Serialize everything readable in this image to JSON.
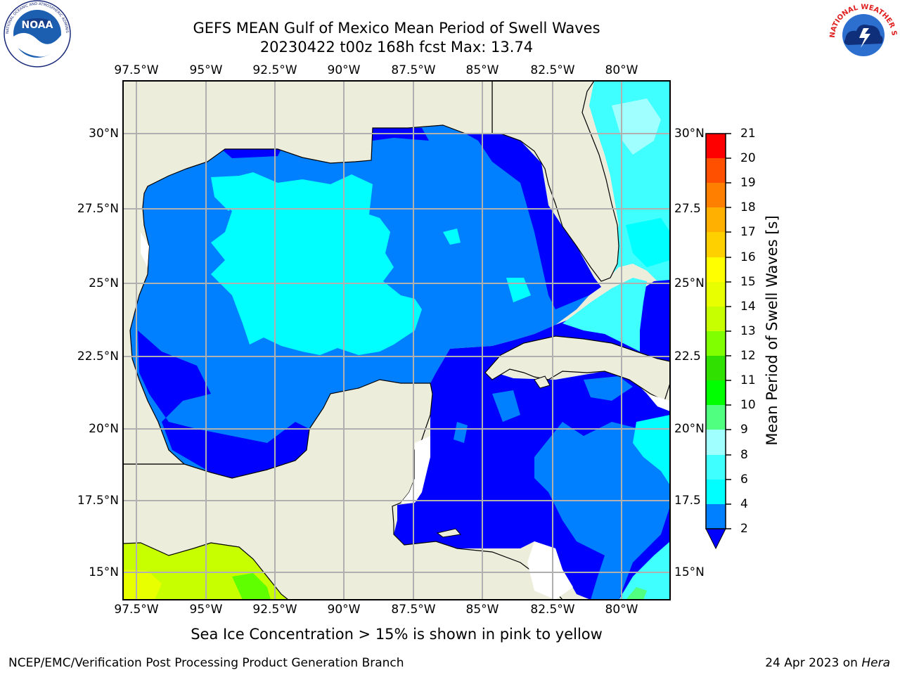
{
  "title_line1": "GEFS MEAN Gulf of Mexico Mean Period of Swell Waves",
  "title_line2": "20230422 t00z 168h fcst   Max: 13.74",
  "logo_left": {
    "name": "noaa-logo",
    "text": "NOAA",
    "ring_text": "NATIONAL OCEANIC AND ATMOSPHERIC ADMINISTRATION · U.S. DEPARTMENT OF COMMERCE"
  },
  "logo_right": {
    "name": "nws-logo",
    "ring_text": "NATIONAL WEATHER SERVICE"
  },
  "map": {
    "lon_labels": [
      "97.5°W",
      "95°W",
      "92.5°W",
      "90°W",
      "87.5°W",
      "85°W",
      "82.5°W",
      "80°W"
    ],
    "lat_labels": [
      "30°N",
      "27.5°N",
      "25°N",
      "22.5°N",
      "20°N",
      "17.5°N",
      "15°N"
    ],
    "lat_labels_right": [
      "30°N",
      "27.5",
      "25°N",
      "22.5",
      "20°N",
      "17.5",
      "15°N"
    ],
    "colors": {
      "land": "#ededdc",
      "coast": "#000000",
      "grid": "#b0b0b0"
    }
  },
  "colorbar": {
    "label": "Mean Period of Swell Waves [s]",
    "ticks": [
      "2",
      "4",
      "6",
      "8",
      "9",
      "10",
      "11",
      "12",
      "13",
      "14",
      "15",
      "16",
      "17",
      "18",
      "19",
      "20",
      "21"
    ],
    "colors": [
      "#0000ff",
      "#0080ff",
      "#00ffff",
      "#40ffff",
      "#a0ffff",
      "#50ff80",
      "#30ff30",
      "#00e000",
      "#60ff00",
      "#c8ff00",
      "#e8ff00",
      "#ffff00",
      "#ffd000",
      "#ffb000",
      "#ff8000",
      "#ff5000",
      "#ff2000",
      "#ff0000"
    ]
  },
  "note": "Sea Ice Concentration > 15% is shown in pink to yellow",
  "credit": "NCEP/EMC/Verification Post Processing Product Generation Branch",
  "date": "24 Apr 2023 on",
  "machine": "Hera"
}
